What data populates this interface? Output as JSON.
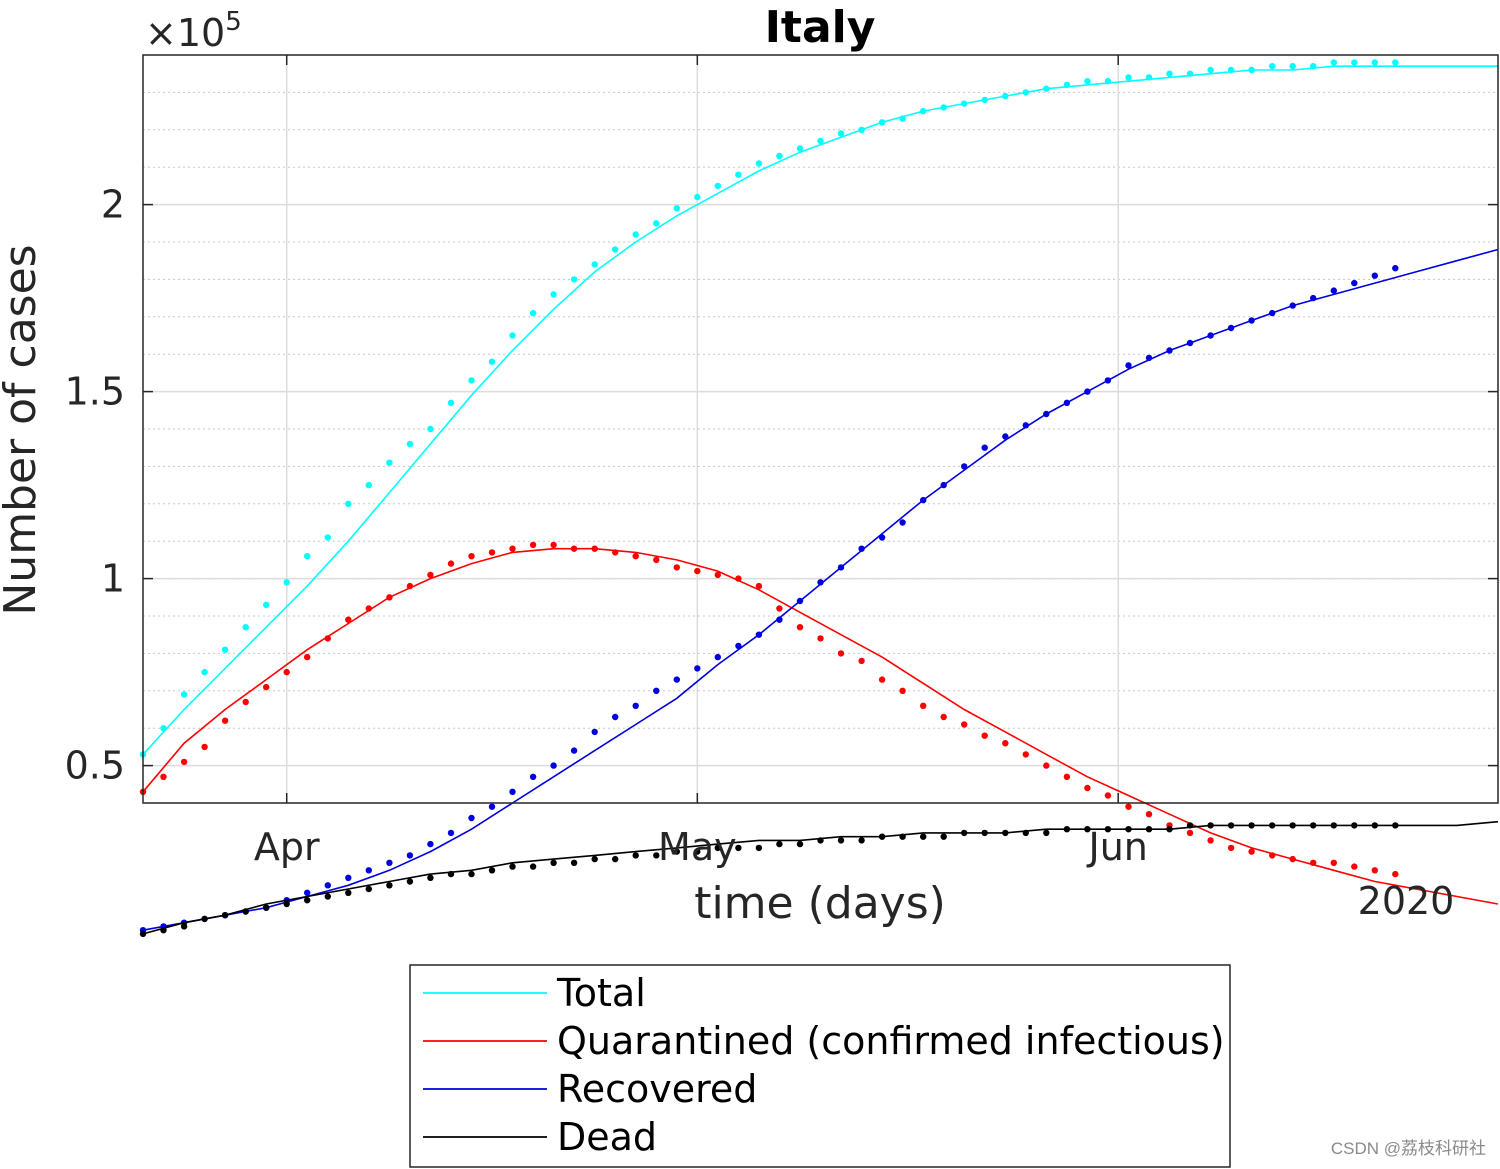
{
  "chart_data": {
    "type": "line",
    "title": "Italy",
    "xlabel": "time (days)",
    "ylabel": "Number of cases",
    "y_exponent_label": "×10",
    "y_exponent_power": "5",
    "x_year_label": "2020",
    "x_range_days": [
      0,
      132
    ],
    "ylim": [
      0.4,
      2.4
    ],
    "x_ticks": [
      {
        "label": "Apr",
        "day": 14
      },
      {
        "label": "May",
        "day": 54
      },
      {
        "label": "Jun",
        "day": 95
      }
    ],
    "y_ticks": [
      {
        "label": "0.5",
        "value": 0.5
      },
      {
        "label": "1",
        "value": 1.0
      },
      {
        "label": "1.5",
        "value": 1.5
      },
      {
        "label": "2",
        "value": 2.0
      }
    ],
    "series": [
      {
        "name": "Total",
        "color": "#00FFFF",
        "fit_x": [
          0,
          4,
          8,
          12,
          16,
          20,
          24,
          28,
          32,
          36,
          40,
          44,
          48,
          52,
          56,
          60,
          64,
          68,
          72,
          76,
          80,
          84,
          88,
          92,
          96,
          100,
          104,
          108,
          112,
          116,
          120,
          124,
          128,
          132
        ],
        "fit_y": [
          0.53,
          0.65,
          0.76,
          0.87,
          0.98,
          1.1,
          1.23,
          1.36,
          1.49,
          1.61,
          1.72,
          1.82,
          1.9,
          1.97,
          2.03,
          2.09,
          2.14,
          2.18,
          2.22,
          2.25,
          2.27,
          2.29,
          2.31,
          2.32,
          2.33,
          2.34,
          2.35,
          2.36,
          2.36,
          2.37,
          2.37,
          2.37,
          2.37,
          2.37
        ],
        "data_x": [
          0,
          2,
          4,
          6,
          8,
          10,
          12,
          14,
          16,
          18,
          20,
          22,
          24,
          26,
          28,
          30,
          32,
          34,
          36,
          38,
          40,
          42,
          44,
          46,
          48,
          50,
          52,
          54,
          56,
          58,
          60,
          62,
          64,
          66,
          68,
          70,
          72,
          74,
          76,
          78,
          80,
          82,
          84,
          86,
          88,
          90,
          92,
          94,
          96,
          98,
          100,
          102,
          104,
          106,
          108,
          110,
          112,
          114,
          116,
          118,
          120,
          122
        ],
        "data_y": [
          0.53,
          0.6,
          0.69,
          0.75,
          0.81,
          0.87,
          0.93,
          0.99,
          1.06,
          1.11,
          1.2,
          1.25,
          1.31,
          1.36,
          1.4,
          1.47,
          1.53,
          1.58,
          1.65,
          1.71,
          1.76,
          1.8,
          1.84,
          1.88,
          1.92,
          1.95,
          1.99,
          2.02,
          2.05,
          2.08,
          2.11,
          2.13,
          2.15,
          2.17,
          2.19,
          2.2,
          2.22,
          2.23,
          2.25,
          2.26,
          2.27,
          2.28,
          2.29,
          2.3,
          2.31,
          2.32,
          2.33,
          2.33,
          2.34,
          2.34,
          2.35,
          2.35,
          2.36,
          2.36,
          2.36,
          2.37,
          2.37,
          2.37,
          2.38,
          2.38,
          2.38,
          2.38
        ]
      },
      {
        "name": "Quarantined (confirmed infectious)",
        "color": "#FF0000",
        "fit_x": [
          0,
          4,
          8,
          12,
          16,
          20,
          24,
          28,
          32,
          36,
          40,
          44,
          48,
          52,
          56,
          60,
          64,
          68,
          72,
          76,
          80,
          84,
          88,
          92,
          96,
          100,
          104,
          108,
          112,
          116,
          120,
          124,
          128,
          132
        ],
        "fit_y": [
          0.43,
          0.56,
          0.65,
          0.73,
          0.81,
          0.88,
          0.95,
          1.0,
          1.04,
          1.07,
          1.08,
          1.08,
          1.07,
          1.05,
          1.02,
          0.97,
          0.91,
          0.85,
          0.79,
          0.72,
          0.65,
          0.59,
          0.53,
          0.47,
          0.42,
          0.37,
          0.32,
          0.28,
          0.25,
          0.22,
          0.19,
          0.17,
          0.15,
          0.13
        ],
        "data_x": [
          0,
          2,
          4,
          6,
          8,
          10,
          12,
          14,
          16,
          18,
          20,
          22,
          24,
          26,
          28,
          30,
          32,
          34,
          36,
          38,
          40,
          42,
          44,
          46,
          48,
          50,
          52,
          54,
          56,
          58,
          60,
          62,
          64,
          66,
          68,
          70,
          72,
          74,
          76,
          78,
          80,
          82,
          84,
          86,
          88,
          90,
          92,
          94,
          96,
          98,
          100,
          102,
          104,
          106,
          108,
          110,
          112,
          114,
          116,
          118,
          120,
          122
        ],
        "data_y": [
          0.43,
          0.47,
          0.51,
          0.55,
          0.62,
          0.67,
          0.71,
          0.75,
          0.79,
          0.84,
          0.89,
          0.92,
          0.95,
          0.98,
          1.01,
          1.04,
          1.06,
          1.07,
          1.08,
          1.09,
          1.09,
          1.08,
          1.08,
          1.07,
          1.06,
          1.05,
          1.03,
          1.02,
          1.01,
          1.0,
          0.98,
          0.92,
          0.87,
          0.84,
          0.8,
          0.78,
          0.73,
          0.7,
          0.66,
          0.63,
          0.61,
          0.58,
          0.56,
          0.53,
          0.5,
          0.47,
          0.44,
          0.42,
          0.39,
          0.37,
          0.34,
          0.32,
          0.3,
          0.28,
          0.27,
          0.26,
          0.25,
          0.24,
          0.24,
          0.23,
          0.22,
          0.21
        ]
      },
      {
        "name": "Recovered",
        "color": "#0000E0",
        "fit_x": [
          0,
          4,
          8,
          12,
          16,
          20,
          24,
          28,
          32,
          36,
          40,
          44,
          48,
          52,
          56,
          60,
          64,
          68,
          72,
          76,
          80,
          84,
          88,
          92,
          96,
          100,
          104,
          108,
          112,
          116,
          120,
          124,
          128,
          132
        ],
        "fit_y": [
          0.06,
          0.08,
          0.1,
          0.12,
          0.15,
          0.18,
          0.22,
          0.27,
          0.33,
          0.4,
          0.47,
          0.54,
          0.61,
          0.68,
          0.77,
          0.85,
          0.94,
          1.03,
          1.12,
          1.21,
          1.29,
          1.37,
          1.44,
          1.5,
          1.56,
          1.61,
          1.65,
          1.69,
          1.73,
          1.76,
          1.79,
          1.82,
          1.85,
          1.88
        ],
        "data_x": [
          0,
          2,
          4,
          6,
          8,
          10,
          12,
          14,
          16,
          18,
          20,
          22,
          24,
          26,
          28,
          30,
          32,
          34,
          36,
          38,
          40,
          42,
          44,
          46,
          48,
          50,
          52,
          54,
          56,
          58,
          60,
          62,
          64,
          66,
          68,
          70,
          72,
          74,
          76,
          78,
          80,
          82,
          84,
          86,
          88,
          90,
          92,
          94,
          96,
          98,
          100,
          102,
          104,
          106,
          108,
          110,
          112,
          114,
          116,
          118,
          120,
          122
        ],
        "data_y": [
          0.06,
          0.07,
          0.08,
          0.09,
          0.1,
          0.11,
          0.12,
          0.14,
          0.16,
          0.18,
          0.2,
          0.22,
          0.24,
          0.26,
          0.29,
          0.32,
          0.36,
          0.39,
          0.43,
          0.47,
          0.5,
          0.54,
          0.59,
          0.63,
          0.66,
          0.7,
          0.73,
          0.76,
          0.79,
          0.82,
          0.85,
          0.89,
          0.94,
          0.99,
          1.03,
          1.08,
          1.11,
          1.15,
          1.21,
          1.25,
          1.3,
          1.35,
          1.38,
          1.41,
          1.44,
          1.47,
          1.5,
          1.53,
          1.57,
          1.59,
          1.61,
          1.63,
          1.65,
          1.67,
          1.69,
          1.71,
          1.73,
          1.75,
          1.77,
          1.79,
          1.81,
          1.83
        ]
      },
      {
        "name": "Dead",
        "color": "#000000",
        "fit_x": [
          0,
          4,
          8,
          12,
          16,
          20,
          24,
          28,
          32,
          36,
          40,
          44,
          48,
          52,
          56,
          60,
          64,
          68,
          72,
          76,
          80,
          84,
          88,
          92,
          96,
          100,
          104,
          108,
          112,
          116,
          120,
          124,
          128,
          132
        ],
        "fit_y": [
          0.05,
          0.08,
          0.1,
          0.13,
          0.15,
          0.17,
          0.19,
          0.21,
          0.22,
          0.24,
          0.25,
          0.26,
          0.27,
          0.28,
          0.29,
          0.3,
          0.3,
          0.31,
          0.31,
          0.32,
          0.32,
          0.32,
          0.33,
          0.33,
          0.33,
          0.33,
          0.34,
          0.34,
          0.34,
          0.34,
          0.34,
          0.34,
          0.34,
          0.35
        ],
        "data_x": [
          0,
          2,
          4,
          6,
          8,
          10,
          12,
          14,
          16,
          18,
          20,
          22,
          24,
          26,
          28,
          30,
          32,
          34,
          36,
          38,
          40,
          42,
          44,
          46,
          48,
          50,
          52,
          54,
          56,
          58,
          60,
          62,
          64,
          66,
          68,
          70,
          72,
          74,
          76,
          78,
          80,
          82,
          84,
          86,
          88,
          90,
          92,
          94,
          96,
          98,
          100,
          102,
          104,
          106,
          108,
          110,
          112,
          114,
          116,
          118,
          120,
          122
        ],
        "data_y": [
          0.05,
          0.06,
          0.07,
          0.09,
          0.1,
          0.11,
          0.12,
          0.13,
          0.14,
          0.15,
          0.16,
          0.17,
          0.18,
          0.19,
          0.2,
          0.21,
          0.21,
          0.22,
          0.23,
          0.23,
          0.24,
          0.24,
          0.25,
          0.25,
          0.26,
          0.26,
          0.27,
          0.27,
          0.28,
          0.28,
          0.28,
          0.29,
          0.29,
          0.3,
          0.3,
          0.3,
          0.31,
          0.31,
          0.31,
          0.31,
          0.32,
          0.32,
          0.32,
          0.32,
          0.32,
          0.33,
          0.33,
          0.33,
          0.33,
          0.33,
          0.33,
          0.34,
          0.34,
          0.34,
          0.34,
          0.34,
          0.34,
          0.34,
          0.34,
          0.34,
          0.34,
          0.34
        ]
      }
    ]
  },
  "watermark": "CSDN @荔枝科研社"
}
